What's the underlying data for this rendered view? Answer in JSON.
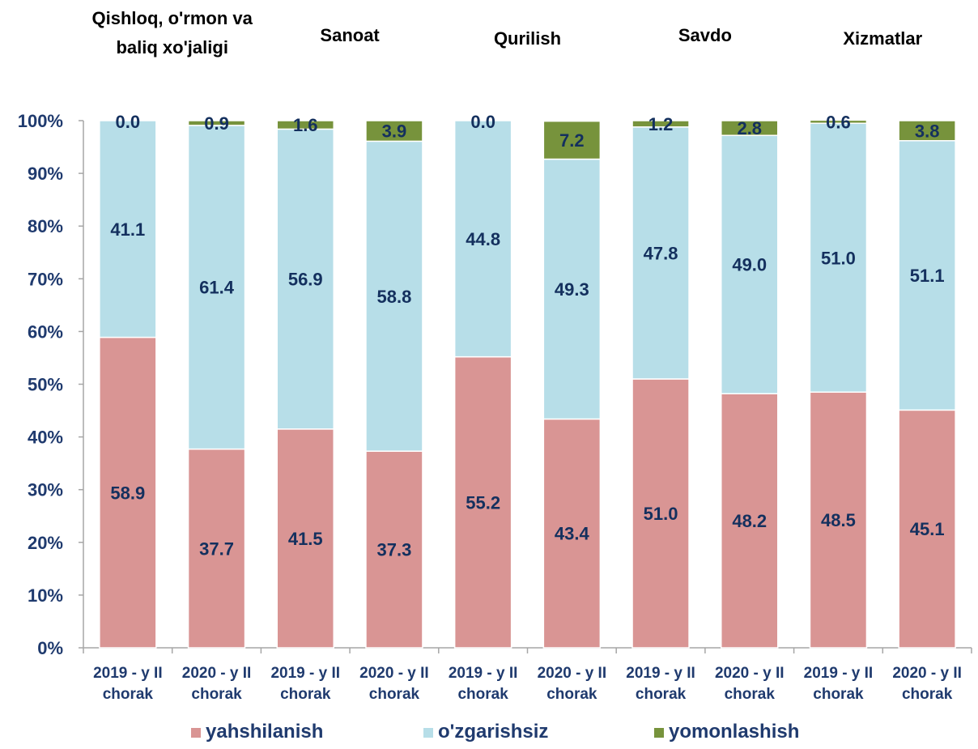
{
  "chart_data": {
    "type": "bar",
    "stacked": true,
    "percent_stacked": true,
    "groups": [
      {
        "title": [
          "Qishloq, o'rmon va",
          "baliq xo'jaligi"
        ]
      },
      {
        "title": [
          "Sanoat"
        ]
      },
      {
        "title": [
          "Qurilish"
        ]
      },
      {
        "title": [
          "Savdo"
        ]
      },
      {
        "title": [
          "Xizmatlar"
        ]
      }
    ],
    "categories": [
      [
        "2019 - y II",
        "chorak"
      ],
      [
        "2020 - y II",
        "chorak"
      ],
      [
        "2019 - y II",
        "chorak"
      ],
      [
        "2020 - y II",
        "chorak"
      ],
      [
        "2019 - y II",
        "chorak"
      ],
      [
        "2020 - y II",
        "chorak"
      ],
      [
        "2019 - y II",
        "chorak"
      ],
      [
        "2020 - y II",
        "chorak"
      ],
      [
        "2019 - y II",
        "chorak"
      ],
      [
        "2020 - y II",
        "chorak"
      ]
    ],
    "series": [
      {
        "name": "yahshilanish",
        "color": "#d99594",
        "values": [
          58.9,
          37.7,
          41.5,
          37.3,
          55.2,
          43.4,
          51.0,
          48.2,
          48.5,
          45.1
        ]
      },
      {
        "name": "o'zgarishsiz",
        "color": "#b7dee8",
        "values": [
          41.1,
          61.4,
          56.9,
          58.8,
          44.8,
          49.3,
          47.8,
          49.0,
          51.0,
          51.1
        ]
      },
      {
        "name": "yomonlashish",
        "color": "#77933c",
        "values": [
          0.0,
          0.9,
          1.6,
          3.9,
          0.0,
          7.2,
          1.2,
          2.8,
          0.6,
          3.8
        ]
      }
    ],
    "yticks": [
      "0%",
      "10%",
      "20%",
      "30%",
      "40%",
      "50%",
      "60%",
      "70%",
      "80%",
      "90%",
      "100%"
    ],
    "ylim": [
      0,
      100
    ],
    "grid": false,
    "legend": "bottom"
  }
}
